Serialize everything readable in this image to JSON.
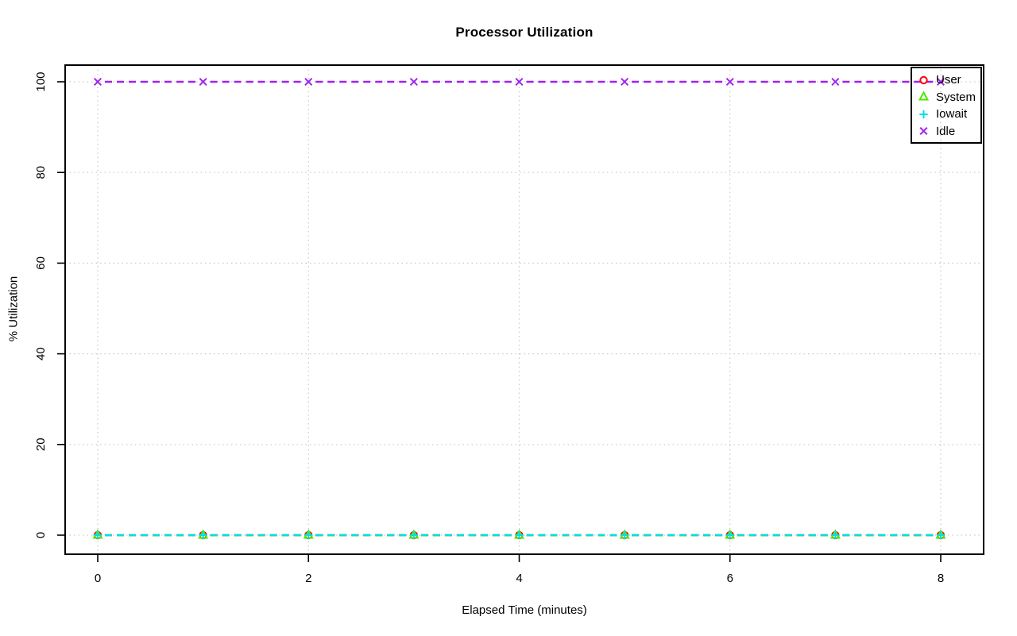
{
  "chart_data": {
    "type": "line",
    "title": "Processor Utilization",
    "xlabel": "Elapsed Time (minutes)",
    "ylabel": "% Utilization",
    "xlim": [
      0,
      8
    ],
    "ylim": [
      0,
      100
    ],
    "x_ticks": [
      0,
      2,
      4,
      6,
      8
    ],
    "y_ticks": [
      0,
      20,
      40,
      60,
      80,
      100
    ],
    "grid": {
      "style": "dotted",
      "color": "#c9c9c9",
      "x_at": [
        0,
        2,
        4,
        6,
        8
      ],
      "y_at": [
        0,
        20,
        40,
        60,
        80,
        100
      ]
    },
    "line_style": "dashed",
    "x": [
      0,
      1,
      2,
      3,
      4,
      5,
      6,
      7,
      8
    ],
    "series": [
      {
        "name": "User",
        "color": "#ff0000",
        "marker": "open-circle",
        "values": [
          0,
          0,
          0,
          0,
          0,
          0,
          0,
          0,
          0
        ]
      },
      {
        "name": "System",
        "color": "#4fe600",
        "marker": "open-triangle",
        "values": [
          0,
          0,
          0,
          0,
          0,
          0,
          0,
          0,
          0
        ]
      },
      {
        "name": "Iowait",
        "color": "#00dfe6",
        "marker": "plus",
        "values": [
          0,
          0,
          0,
          0,
          0,
          0,
          0,
          0,
          0
        ]
      },
      {
        "name": "Idle",
        "color": "#a020f0",
        "marker": "x",
        "values": [
          100,
          100,
          100,
          100,
          100,
          100,
          100,
          100,
          100
        ]
      }
    ],
    "legend": {
      "position": "top-right",
      "items": [
        "User",
        "System",
        "Iowait",
        "Idle"
      ]
    },
    "colors": {
      "axis": "#000000",
      "background": "#ffffff",
      "grid": "#c9c9c9"
    }
  }
}
